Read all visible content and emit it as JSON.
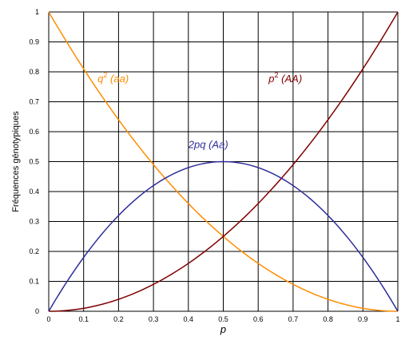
{
  "chart_data": {
    "type": "line",
    "title": "",
    "xlabel": "p",
    "ylabel": "Fréquences génotypiques",
    "xlim": [
      0,
      1
    ],
    "ylim": [
      0,
      1
    ],
    "grid": true,
    "x_ticks": [
      "0",
      "0.1",
      "0.2",
      "0.3",
      "0.4",
      "0.5",
      "0.6",
      "0.7",
      "0.8",
      "0.9",
      "1"
    ],
    "y_ticks": [
      "0",
      "0.1",
      "0.2",
      "0.3",
      "0.4",
      "0.5",
      "0.6",
      "0.7",
      "0.8",
      "0.9",
      "1"
    ],
    "x": [
      0,
      0.1,
      0.2,
      0.3,
      0.4,
      0.5,
      0.6,
      0.7,
      0.8,
      0.9,
      1
    ],
    "series": [
      {
        "name": "q² (aa)",
        "name_base": "q",
        "name_sup": "2",
        "name_tail": " (aa)",
        "color": "#ff8c00",
        "values": [
          1,
          0.81,
          0.64,
          0.49,
          0.36,
          0.25,
          0.16,
          0.09,
          0.04,
          0.01,
          0
        ]
      },
      {
        "name": "p² (AA)",
        "name_base": "p",
        "name_sup": "2",
        "name_tail": " (AA)",
        "color": "#800000",
        "values": [
          0,
          0.01,
          0.04,
          0.09,
          0.16,
          0.25,
          0.36,
          0.49,
          0.64,
          0.81,
          1
        ]
      },
      {
        "name": "2pq (Aa)",
        "name_base": "2pq (Aa)",
        "name_sup": "",
        "name_tail": "",
        "color": "#2e2e9a",
        "values": [
          0,
          0.18,
          0.32,
          0.42,
          0.48,
          0.5,
          0.48,
          0.42,
          0.32,
          0.18,
          0
        ]
      }
    ]
  }
}
